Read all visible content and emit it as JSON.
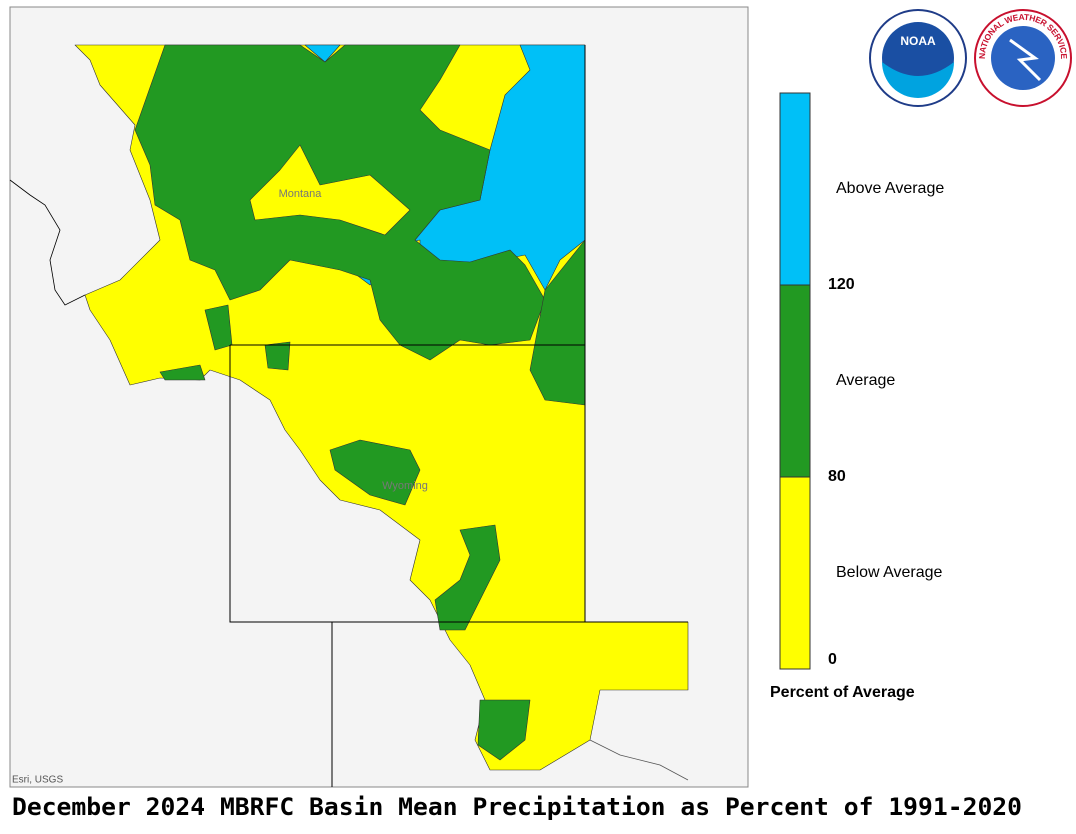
{
  "map": {
    "title": "December 2024 MBRFC Basin Mean Precipitation as Percent of 1991-2020",
    "places": [
      "Montana",
      "Wyoming"
    ],
    "attribution": "Esri, USGS",
    "legend": {
      "title": "Percent of Average",
      "classes": [
        {
          "label": "Above Average",
          "color": "#00c0f7"
        },
        {
          "label": "Average",
          "color": "#229922"
        },
        {
          "label": "Below Average",
          "color": "#ffff00"
        }
      ],
      "breaks": [
        120,
        80,
        0
      ]
    },
    "logos": {
      "noaa": "NOAA",
      "nws": "NATIONAL WEATHER SERVICE"
    }
  }
}
